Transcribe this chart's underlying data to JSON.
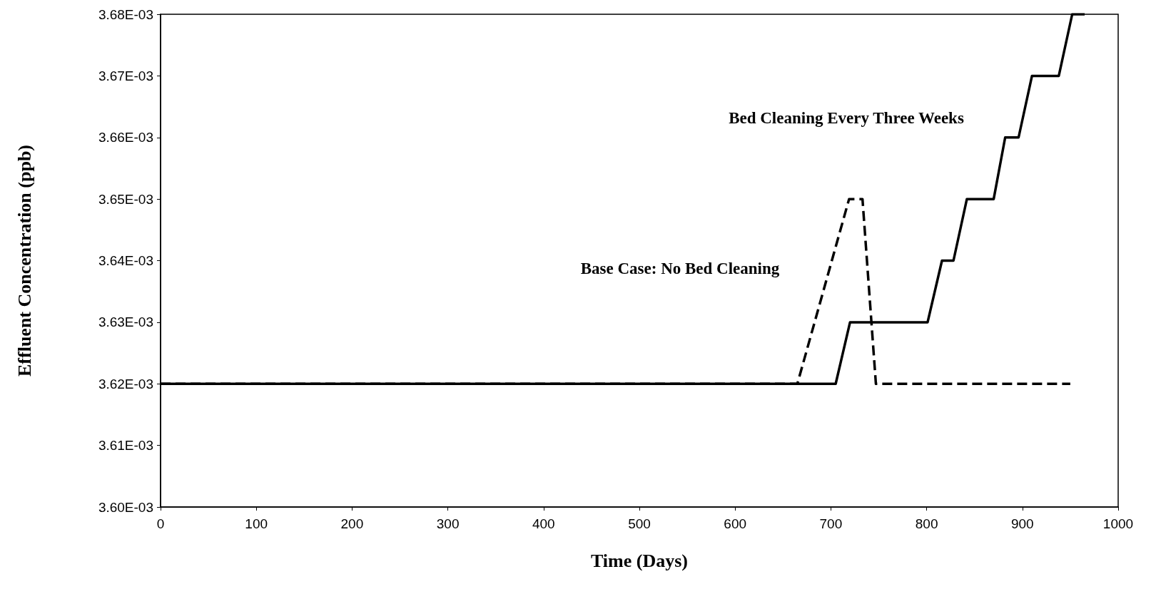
{
  "chart_data": {
    "type": "line",
    "xlabel": "Time (Days)",
    "ylabel": "Effluent Concentration (ppb)",
    "xlim": [
      0,
      1000
    ],
    "xticks": [
      0,
      100,
      200,
      300,
      400,
      500,
      600,
      700,
      800,
      900,
      1000
    ],
    "ylim": [
      0.0036,
      0.00368
    ],
    "yticks": [
      {
        "value": 0.0036,
        "label": "3.60E-03"
      },
      {
        "value": 0.00361,
        "label": "3.61E-03"
      },
      {
        "value": 0.00362,
        "label": "3.62E-03"
      },
      {
        "value": 0.00363,
        "label": "3.63E-03"
      },
      {
        "value": 0.00364,
        "label": "3.64E-03"
      },
      {
        "value": 0.00365,
        "label": "3.65E-03"
      },
      {
        "value": 0.00366,
        "label": "3.66E-03"
      },
      {
        "value": 0.00367,
        "label": "3.67E-03"
      },
      {
        "value": 0.00368,
        "label": "3.68E-03"
      }
    ],
    "grid": false,
    "marker": "none",
    "series": [
      {
        "color": "#000000",
        "line_style": "dashed",
        "x": [
          0,
          665,
          719,
          733,
          747,
          950
        ],
        "values": [
          0.00362,
          0.00362,
          0.00365,
          0.00365,
          0.00362,
          0.00362
        ]
      },
      {
        "color": "#000000",
        "line_style": "solid",
        "x": [
          0,
          705,
          720,
          801,
          816,
          828,
          842,
          870,
          882,
          896,
          910,
          938,
          952,
          965
        ],
        "values": [
          0.00362,
          0.00362,
          0.00363,
          0.00363,
          0.00364,
          0.00364,
          0.00365,
          0.00365,
          0.00366,
          0.00366,
          0.00367,
          0.00367,
          0.00368,
          0.00368
        ]
      }
    ],
    "annotations": [
      "Base Case: No Bed Cleaning",
      "Bed Cleaning Every Three Weeks"
    ]
  }
}
